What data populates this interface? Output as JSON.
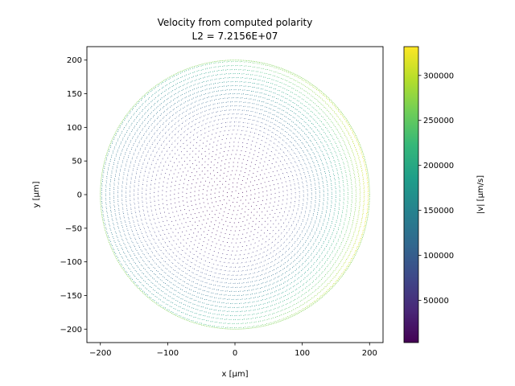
{
  "chart_data": {
    "type": "scatter",
    "title": "Velocity from computed polarity",
    "subtitle": "L2 = 7.2156E+07",
    "xlabel": "x [μm]",
    "ylabel": "y [μm]",
    "xlim": [
      -220,
      220
    ],
    "ylim": [
      -220,
      220
    ],
    "xticks": [
      -200,
      -100,
      0,
      100,
      200
    ],
    "yticks": [
      -200,
      -150,
      -100,
      -50,
      0,
      50,
      100,
      150,
      200
    ],
    "xtick_labels": [
      "−200",
      "−100",
      "0",
      "100",
      "200"
    ],
    "ytick_labels": [
      "−200",
      "−150",
      "−100",
      "−50",
      "0",
      "50",
      "100",
      "150",
      "200"
    ],
    "domain_radius": 200,
    "grid": false,
    "colorbar": {
      "label": "|v| [μm/s]",
      "colormap": "viridis",
      "range": [
        3000,
        332000
      ],
      "ticks": [
        50000,
        100000,
        150000,
        200000,
        250000,
        300000
      ],
      "tick_labels": [
        "50000",
        "100000",
        "150000",
        "200000",
        "250000",
        "300000"
      ]
    },
    "colors": {
      "viridis": [
        "#440154",
        "#482878",
        "#3e4989",
        "#31688e",
        "#26828e",
        "#1f9e89",
        "#35b779",
        "#6ece58",
        "#b5de2b",
        "#fde725"
      ]
    }
  }
}
